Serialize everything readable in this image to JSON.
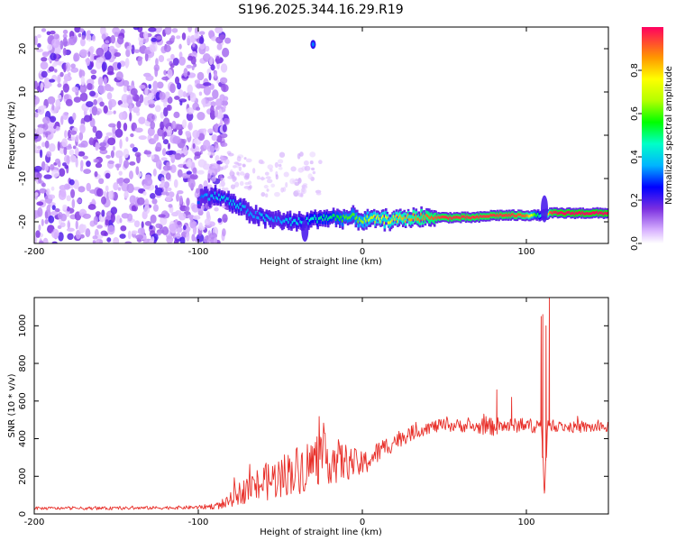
{
  "title": "S196.2025.344.16.29.R19",
  "chart_data": [
    {
      "type": "heatmap",
      "xlabel": "Height of straight line (km)",
      "ylabel": "Frequency (Hz)",
      "xlim": [
        -200,
        150
      ],
      "ylim": [
        -25,
        25
      ],
      "xticks": [
        "-200",
        "-100",
        "0",
        "100"
      ],
      "yticks": [
        "-20",
        "-10",
        "0",
        "10",
        "20"
      ],
      "colorbar": {
        "label": "Normalized spectral amplitude",
        "range": [
          0,
          1
        ],
        "ticks": [
          "0.0",
          "0.2",
          "0.4",
          "0.6",
          "0.8"
        ]
      },
      "noise_region": {
        "x": [
          -200,
          -90
        ],
        "y": [
          -25,
          25
        ]
      },
      "ridge": {
        "x": [
          -100,
          -95,
          -90,
          -85,
          -80,
          -75,
          -70,
          -65,
          -60,
          -55,
          -50,
          -45,
          -40,
          -35,
          -30,
          -25,
          -20,
          -15,
          -10,
          -5,
          0,
          5,
          10,
          15,
          20,
          30,
          40,
          50,
          60,
          70,
          80,
          90,
          100,
          105,
          110,
          115,
          120,
          130,
          140,
          150
        ],
        "freq": [
          -15,
          -14,
          -14,
          -14.5,
          -15.5,
          -16.5,
          -17.5,
          -18.5,
          -19,
          -19.5,
          -19.5,
          -20,
          -20,
          -20,
          -19.5,
          -19,
          -19,
          -19,
          -19,
          -19,
          -19.5,
          -19.5,
          -19.5,
          -19.5,
          -19.5,
          -19,
          -19,
          -19,
          -19,
          -19,
          -18.5,
          -18.5,
          -18.5,
          -18.5,
          -18.5,
          -18,
          -18,
          -18,
          -18,
          -18
        ],
        "amplitude": [
          0.3,
          0.35,
          0.4,
          0.4,
          0.4,
          0.4,
          0.35,
          0.35,
          0.4,
          0.35,
          0.35,
          0.4,
          0.4,
          0.45,
          0.45,
          0.5,
          0.5,
          0.55,
          0.6,
          0.6,
          0.65,
          0.7,
          0.75,
          0.75,
          0.8,
          0.85,
          0.9,
          0.95,
          0.95,
          0.95,
          0.95,
          0.95,
          0.9,
          0.6,
          0.4,
          0.95,
          1.0,
          1.0,
          1.0,
          1.0
        ]
      }
    },
    {
      "type": "line",
      "xlabel": "Height of straight line (km)",
      "ylabel": "SNR (10 * v/v)",
      "xlim": [
        -200,
        150
      ],
      "ylim": [
        0,
        1150
      ],
      "xticks": [
        "-200",
        "-100",
        "0",
        "100"
      ],
      "yticks": [
        "0",
        "200",
        "400",
        "600",
        "800",
        "1000"
      ],
      "series": [
        {
          "name": "SNR",
          "color": "#e8302a",
          "envelope": {
            "x": [
              -200,
              -150,
              -100,
              -85,
              -75,
              -65,
              -55,
              -45,
              -35,
              -25,
              -15,
              -5,
              0,
              10,
              20,
              30,
              40,
              50,
              60,
              70,
              80,
              90,
              100,
              105,
              109,
              111,
              113,
              115,
              120,
              130,
              140,
              150
            ],
            "base": [
              30,
              30,
              35,
              45,
              110,
              150,
              180,
              220,
              250,
              300,
              280,
              270,
              260,
              330,
              390,
              430,
              460,
              470,
              470,
              460,
              465,
              470,
              470,
              470,
              470,
              130,
              470,
              470,
              465,
              460,
              460,
              460
            ],
            "spread": [
              8,
              8,
              10,
              20,
              60,
              90,
              110,
              120,
              140,
              140,
              120,
              80,
              70,
              60,
              50,
              40,
              35,
              35,
              35,
              35,
              50,
              40,
              35,
              40,
              50,
              40,
              50,
              30,
              30,
              30,
              30,
              30
            ]
          },
          "spikes": [
            {
              "x": 82,
              "y": 660
            },
            {
              "x": 91,
              "y": 620
            },
            {
              "x": 109,
              "y": 1050
            },
            {
              "x": 110,
              "y": 1060
            },
            {
              "x": 111,
              "y": 110
            },
            {
              "x": 112,
              "y": 1000
            },
            {
              "x": 114,
              "y": 1150
            }
          ]
        }
      ]
    }
  ]
}
